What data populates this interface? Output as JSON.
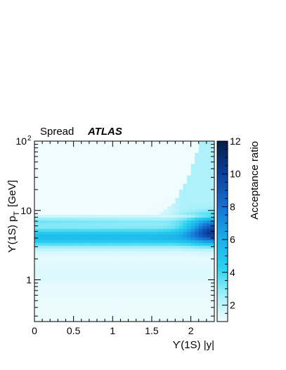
{
  "chart_data": {
    "type": "heatmap",
    "title": "",
    "label_left": "Spread",
    "label_experiment": "ATLAS",
    "xlabel": "ϒ(1S) |y|",
    "ylabel_main": "ϒ(1S) p",
    "ylabel_sub": "T",
    "ylabel_unit": "[GeV]",
    "zlabel": "Acceptance ratio",
    "xlim": [
      0,
      2.3
    ],
    "ylim": [
      0.25,
      100
    ],
    "y_scale": "log",
    "zlim": [
      1,
      12
    ],
    "x_ticks": [
      {
        "value": 0,
        "label": "0"
      },
      {
        "value": 0.5,
        "label": "0.5"
      },
      {
        "value": 1,
        "label": "1"
      },
      {
        "value": 1.5,
        "label": "1.5"
      },
      {
        "value": 2,
        "label": "2"
      }
    ],
    "y_ticks": [
      {
        "value": 1,
        "label": "1"
      },
      {
        "value": 10,
        "label": "10"
      },
      {
        "value": 100,
        "label": "10",
        "exponent": "2"
      }
    ],
    "z_ticks": [
      {
        "value": 2,
        "label": "2"
      },
      {
        "value": 4,
        "label": "4"
      },
      {
        "value": 6,
        "label": "6"
      },
      {
        "value": 8,
        "label": "8"
      },
      {
        "value": 10,
        "label": "10"
      },
      {
        "value": 12,
        "label": "12"
      }
    ],
    "colormap": [
      "#f2fcfe",
      "#a6f0fa",
      "#2ad2f0",
      "#1aaeea",
      "#1671d2",
      "#0c3f9c",
      "#061c48"
    ],
    "bands_by_pt": [
      {
        "pt_range": [
          0.25,
          1.8
        ],
        "ratio": 1.4
      },
      {
        "pt_range": [
          1.8,
          2.2
        ],
        "ratio": 3.5
      },
      {
        "pt_range": [
          2.5,
          6
        ],
        "ratio": 5.5
      },
      {
        "pt_range": [
          6,
          9
        ],
        "ratio": 4.0
      },
      {
        "pt_range": [
          10,
          100
        ],
        "ratio": 1.3
      }
    ],
    "high_rapidity_region": {
      "y_range": [
        1.7,
        2.3
      ],
      "pt_range": [
        3.5,
        8
      ],
      "max_ratio": 12
    }
  }
}
